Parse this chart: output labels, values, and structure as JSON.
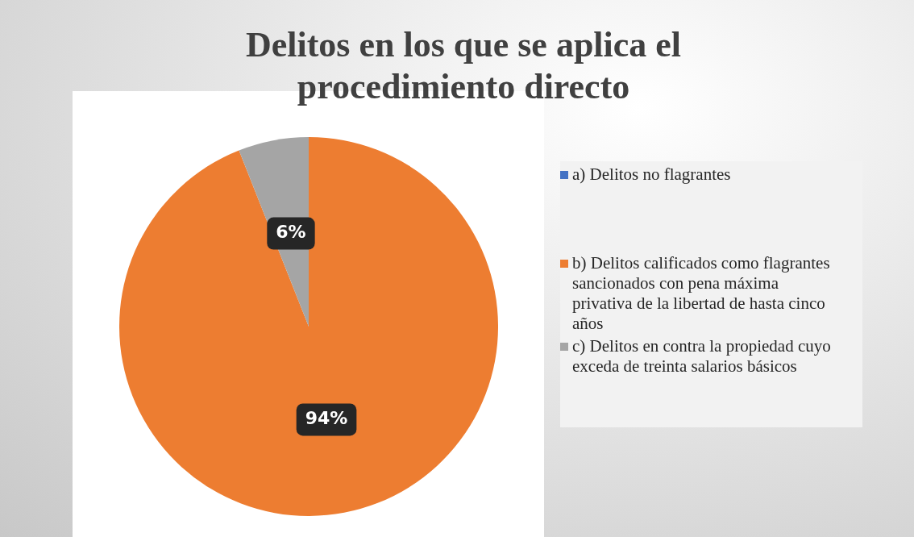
{
  "chart_data": {
    "type": "pie",
    "title": "Delitos en los que se aplica el procedimiento directo",
    "categories": [
      "a) Delitos no flagrantes",
      "b) Delitos calificados como flagrantes sancionados con pena máxima privativa de la libertad de hasta cinco años",
      "c) Delitos en contra la propiedad cuyo exceda de treinta salarios básicos"
    ],
    "values": [
      0,
      94,
      6
    ],
    "colors": [
      "#4472c4",
      "#ed7d31",
      "#a5a5a5"
    ],
    "value_labels": [
      null,
      "94%",
      "6%"
    ],
    "legend": "right"
  }
}
